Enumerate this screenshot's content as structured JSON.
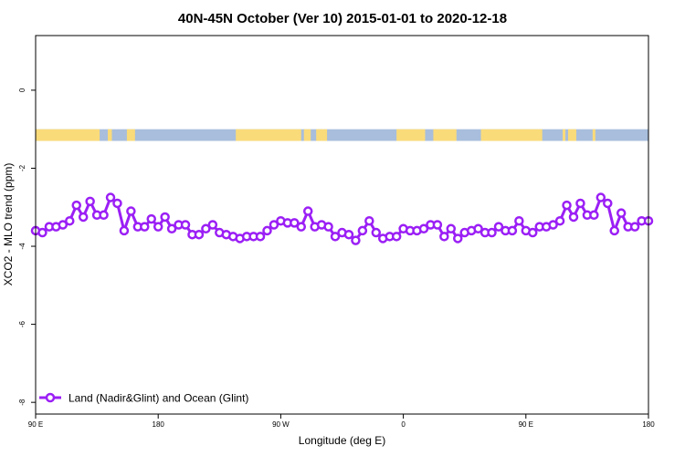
{
  "chart_data": {
    "type": "line",
    "title": "40N-45N October (Ver 10)   2015-01-01 to 2020-12-18",
    "xlabel": "Longitude (deg E)",
    "ylabel": "XCO2 - MLO trend (ppm)",
    "xlim": [
      90,
      540
    ],
    "ylim": [
      -8.3,
      1.4
    ],
    "x_ticks": [
      {
        "value": 90,
        "label": "90 E"
      },
      {
        "value": 180,
        "label": "180"
      },
      {
        "value": 270,
        "label": "90 W"
      },
      {
        "value": 360,
        "label": "0"
      },
      {
        "value": 450,
        "label": "90 E"
      },
      {
        "value": 540,
        "label": "180"
      }
    ],
    "y_ticks": [
      {
        "value": 0,
        "label": "0"
      },
      {
        "value": -2,
        "label": "-2"
      },
      {
        "value": -4,
        "label": "-4"
      },
      {
        "value": -6,
        "label": "-6"
      },
      {
        "value": -8,
        "label": "-8"
      }
    ],
    "grid": false,
    "legend_position": "bottom-left",
    "land_ocean_bar": {
      "y_top": -1.0,
      "y_bottom": -1.3,
      "ocean_color": "#a8bedc",
      "land_color": "#fadb7a",
      "land_segments": [
        [
          90,
          137
        ],
        [
          143,
          146
        ],
        [
          157,
          163
        ],
        [
          237,
          285
        ],
        [
          287,
          292
        ],
        [
          296,
          304
        ],
        [
          355,
          376
        ],
        [
          382,
          399
        ],
        [
          417,
          462
        ],
        [
          477,
          479
        ],
        [
          481,
          487
        ],
        [
          499,
          501
        ]
      ]
    },
    "series": [
      {
        "name": "Land (Nadir&Glint) and Ocean (Glint)",
        "color": "#9b1ff5",
        "x": [
          90,
          95,
          100,
          105,
          110,
          115,
          120,
          125,
          130,
          135,
          140,
          145,
          150,
          155,
          160,
          165,
          170,
          175,
          180,
          185,
          190,
          195,
          200,
          205,
          210,
          215,
          220,
          225,
          230,
          235,
          240,
          245,
          250,
          255,
          260,
          265,
          270,
          275,
          280,
          285,
          290,
          295,
          300,
          305,
          310,
          315,
          320,
          325,
          330,
          335,
          340,
          345,
          350,
          355,
          360,
          365,
          370,
          375,
          380,
          385,
          390,
          395,
          400,
          405,
          410,
          415,
          420,
          425,
          430,
          435,
          440,
          445,
          450,
          455,
          460,
          465,
          470,
          475,
          480,
          485,
          490,
          495,
          500,
          505,
          510,
          515,
          520,
          525,
          530,
          535,
          540
        ],
        "y": [
          -3.6,
          -3.65,
          -3.5,
          -3.5,
          -3.45,
          -3.35,
          -2.95,
          -3.25,
          -2.85,
          -3.2,
          -3.2,
          -2.75,
          -2.9,
          -3.6,
          -3.1,
          -3.5,
          -3.5,
          -3.3,
          -3.5,
          -3.25,
          -3.55,
          -3.45,
          -3.45,
          -3.7,
          -3.7,
          -3.55,
          -3.45,
          -3.65,
          -3.7,
          -3.75,
          -3.8,
          -3.75,
          -3.75,
          -3.75,
          -3.6,
          -3.45,
          -3.35,
          -3.4,
          -3.4,
          -3.5,
          -3.1,
          -3.5,
          -3.45,
          -3.5,
          -3.75,
          -3.65,
          -3.7,
          -3.85,
          -3.6,
          -3.35,
          -3.65,
          -3.8,
          -3.75,
          -3.75,
          -3.55,
          -3.6,
          -3.6,
          -3.55,
          -3.45,
          -3.45,
          -3.75,
          -3.55,
          -3.8,
          -3.65,
          -3.6,
          -3.55,
          -3.65,
          -3.65,
          -3.5,
          -3.6,
          -3.6,
          -3.35,
          -3.6,
          -3.65,
          -3.5,
          -3.5,
          -3.45,
          -3.35,
          -2.95,
          -3.25,
          -2.9,
          -3.2,
          -3.2,
          -2.75,
          -2.9,
          -3.6,
          -3.15,
          -3.5,
          -3.5,
          -3.35,
          -3.35
        ]
      }
    ]
  }
}
